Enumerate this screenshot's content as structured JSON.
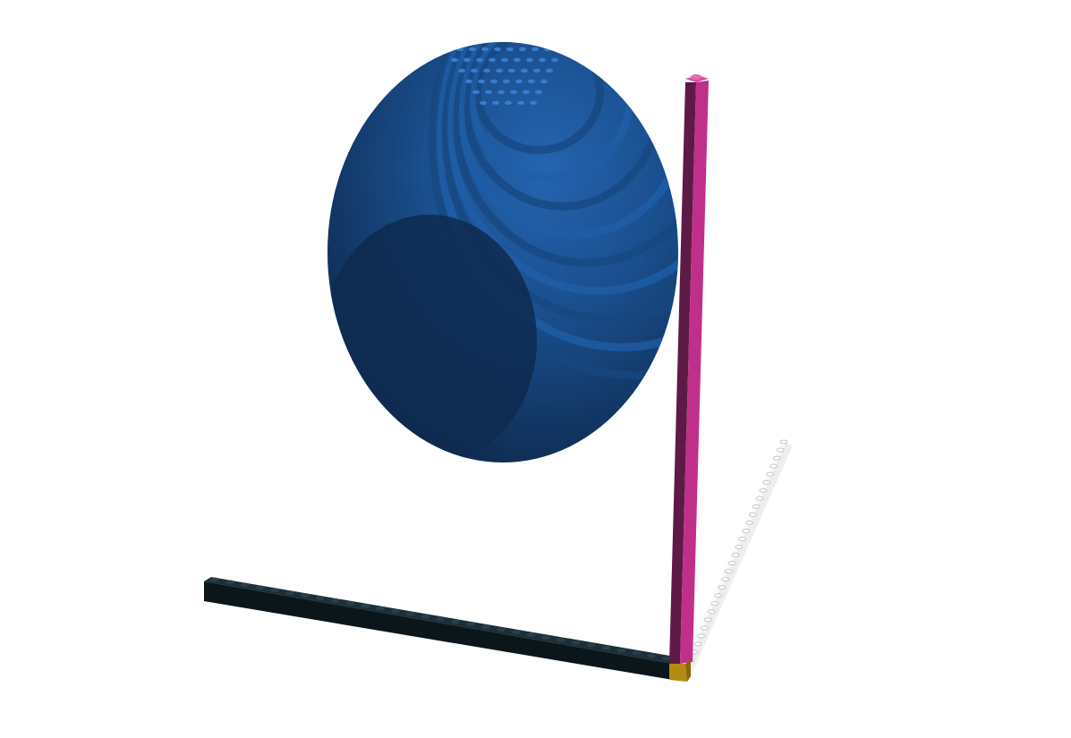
{
  "scene": {
    "background": "#ffffff",
    "sphere": {
      "shape": "voxel-sphere",
      "material": "brick-studs",
      "color_light": "#1f5fa8",
      "color_mid": "#17477f",
      "color_dark": "#0e2a4f"
    },
    "axes": {
      "vertical": {
        "color": "#c0308a",
        "color_dark": "#5e1a46",
        "orientation": "y-axis"
      },
      "horizontal": {
        "color": "#102029",
        "color_dark": "#0a1418",
        "orientation": "x-axis"
      },
      "depth": {
        "color": "#f2f2f2",
        "color_dark": "#cccccc",
        "orientation": "z-axis"
      },
      "origin": {
        "color": "#b58a12"
      }
    }
  }
}
